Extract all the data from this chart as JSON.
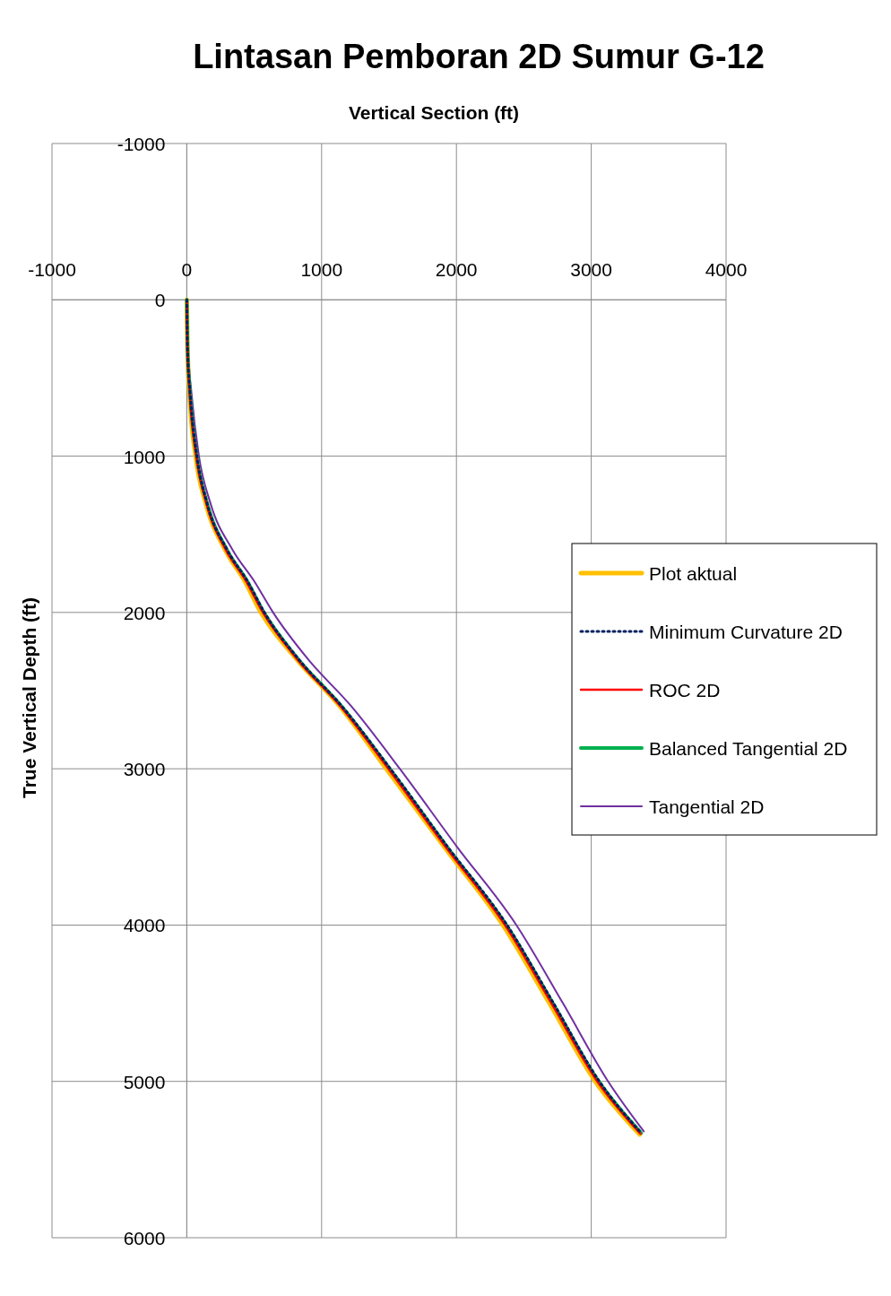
{
  "chart_data": {
    "type": "line",
    "title": "Lintasan Pemboran 2D Sumur G-12",
    "xlabel": "Vertical Section (ft)",
    "ylabel": "True Vertical Depth (ft)",
    "xlim": [
      -1000,
      4000
    ],
    "xticks": [
      -1000,
      0,
      1000,
      2000,
      3000,
      4000
    ],
    "ylim": [
      6000,
      -1000
    ],
    "yticks": [
      -1000,
      0,
      1000,
      2000,
      3000,
      4000,
      5000,
      6000
    ],
    "grid": true,
    "legend": "right",
    "series": [
      {
        "name": "Plot aktual",
        "color": "#ffc000",
        "line_style": "solid",
        "x": [
          0,
          5,
          20,
          65,
          140,
          285,
          430,
          550,
          815,
          1135,
          1480,
          1910,
          2345,
          2690,
          3030,
          3360
        ],
        "values": [
          0,
          300,
          600,
          1000,
          1300,
          1600,
          1800,
          2000,
          2300,
          2600,
          3000,
          3500,
          4000,
          4500,
          5000,
          5340
        ]
      },
      {
        "name": "Minimum Curvature 2D",
        "color": "#002060",
        "line_style": "dotted",
        "x": [
          0,
          5,
          25,
          75,
          150,
          300,
          450,
          575,
          830,
          1150,
          1510,
          1935,
          2375,
          2720,
          3060,
          3370
        ],
        "values": [
          0,
          300,
          600,
          1000,
          1300,
          1600,
          1800,
          2000,
          2300,
          2600,
          3000,
          3500,
          4000,
          4500,
          5000,
          5330
        ]
      },
      {
        "name": "ROC 2D",
        "color": "#ff0000",
        "line_style": "solid",
        "x": [
          0,
          4,
          22,
          70,
          145,
          290,
          440,
          565,
          820,
          1140,
          1495,
          1920,
          2360,
          2705,
          3045,
          3365
        ],
        "values": [
          0,
          300,
          600,
          1000,
          1300,
          1600,
          1800,
          2000,
          2300,
          2600,
          3000,
          3500,
          4000,
          4500,
          5000,
          5335
        ]
      },
      {
        "name": "Balanced Tangential 2D",
        "color": "#00b050",
        "line_style": "solid",
        "x": [
          0,
          5,
          24,
          73,
          150,
          298,
          448,
          572,
          828,
          1148,
          1505,
          1930,
          2370,
          2715,
          3055,
          3370
        ],
        "values": [
          0,
          300,
          600,
          1000,
          1300,
          1600,
          1800,
          2000,
          2300,
          2600,
          3000,
          3500,
          4000,
          4500,
          5000,
          5330
        ]
      },
      {
        "name": "Tangential 2D",
        "color": "#7030a0",
        "line_style": "solid",
        "x": [
          0,
          8,
          35,
          90,
          175,
          340,
          500,
          640,
          900,
          1220,
          1580,
          2005,
          2445,
          2790,
          3125,
          3390
        ],
        "values": [
          0,
          300,
          600,
          1000,
          1300,
          1600,
          1800,
          2000,
          2300,
          2600,
          3000,
          3500,
          4000,
          4500,
          5000,
          5320
        ]
      }
    ]
  }
}
